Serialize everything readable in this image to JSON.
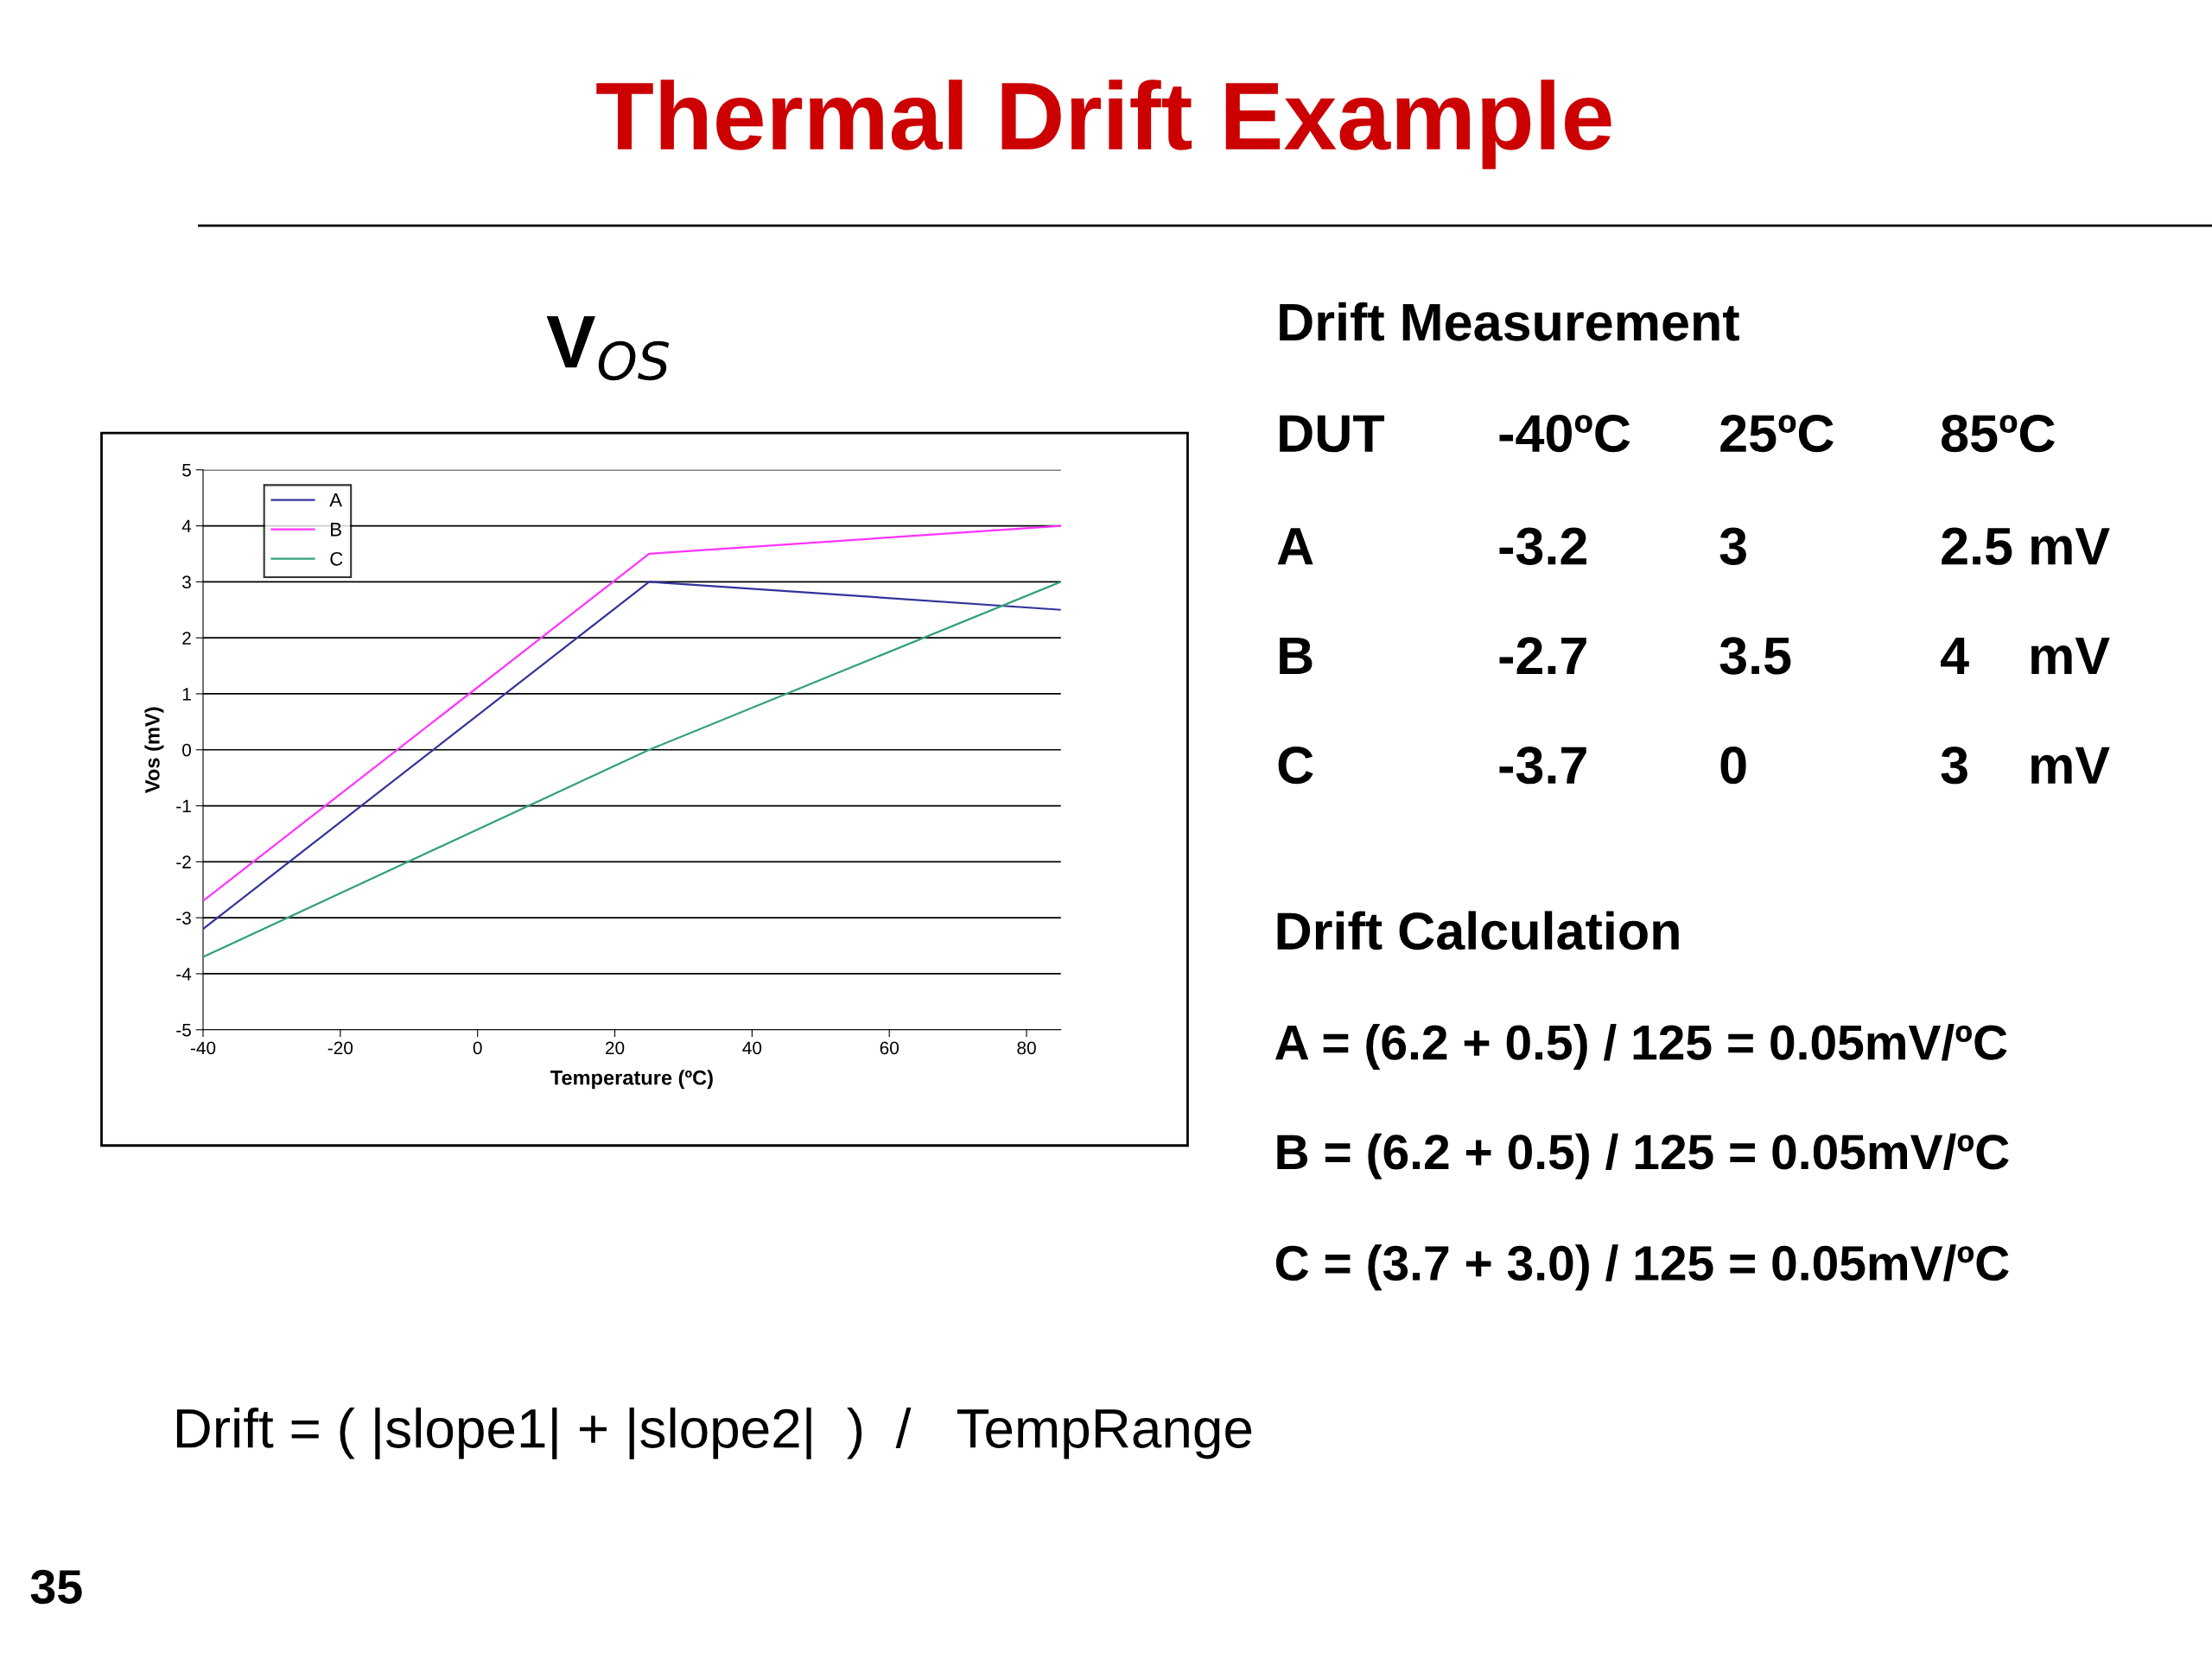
{
  "chart_data": [
    {
      "type": "line",
      "title": "V$_{OS}$",
      "xlabel": "Temperature (ºC)",
      "ylabel": "Vos (mV)",
      "x": [
        -40,
        25,
        85
      ],
      "xlim": [
        -40,
        85
      ],
      "xticks": [
        -40,
        -20,
        0,
        20,
        40,
        60,
        80
      ],
      "ylim": [
        -5,
        5
      ],
      "yticks": [
        -5,
        -4,
        -3,
        -2,
        -1,
        0,
        1,
        2,
        3,
        4,
        5
      ],
      "grid": "y",
      "legend": "top left",
      "marker": "none",
      "line_style": "solid",
      "series": [
        {
          "name": "A",
          "color": "#33339a",
          "values": [
            -3.2,
            3,
            2.5
          ]
        },
        {
          "name": "B",
          "color": "#ff33ff",
          "values": [
            -2.7,
            3.5,
            4
          ]
        },
        {
          "name": "C",
          "color": "#33a07a",
          "values": [
            -3.7,
            0,
            3
          ]
        }
      ],
      "annotations": [
        "Drift = ( |slope1| + |slope2|  )  /   TempRange"
      ]
    },
    {
      "type": "other",
      "title": "Thermal Drift Example",
      "annotations": [
        "Drift Measurement",
        "DUT",
        "-40ºC",
        "25ºC",
        "85ºC",
        "A",
        "-3.2",
        "3",
        "2.5 mV",
        "B",
        "-2.7",
        "3.5",
        "4    mV",
        "C",
        "-3.7",
        "0",
        "3    mV",
        "Drift Calculation",
        "A = (6.2 + 0.5) / 125 = 0.05mV/ºC",
        "B = (6.2 + 0.5) / 125 = 0.05mV/ºC",
        "C = (3.7 + 3.0) / 125 = 0.05mV/ºC",
        "35"
      ]
    }
  ]
}
